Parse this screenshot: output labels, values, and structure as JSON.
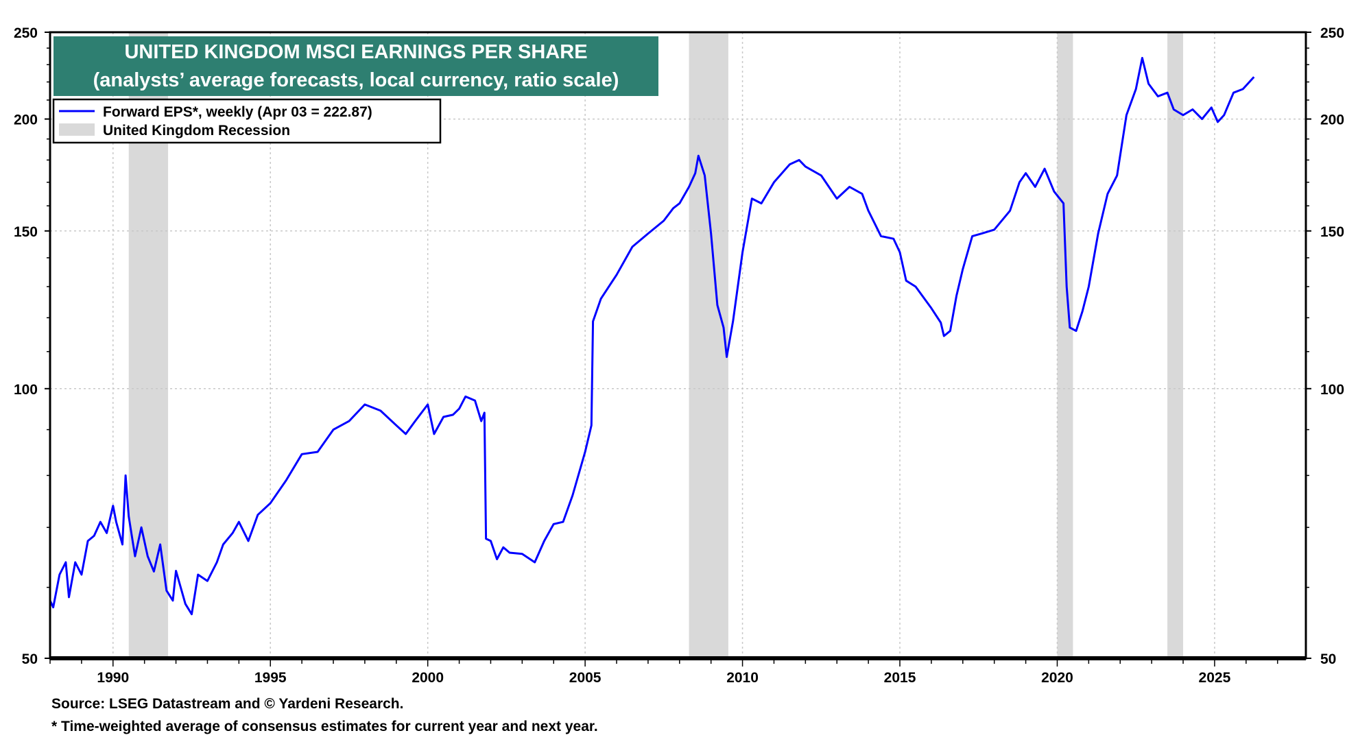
{
  "chart_data": {
    "type": "line",
    "title": "UNITED KINGDOM MSCI EARNINGS PER SHARE",
    "subtitle": "(analysts’ average forecasts, local currency, ratio scale)",
    "title_bg_color": "#2e7f71",
    "xlabel": "",
    "ylabel": "",
    "y_scale": "log",
    "ylim": [
      50,
      250
    ],
    "xlim": [
      1988.0,
      2027.9
    ],
    "y_ticks": [
      50,
      100,
      150,
      200,
      250
    ],
    "y_tick_labels": [
      "50",
      "100",
      "150",
      "200",
      "250"
    ],
    "x_ticks": [
      1990,
      1995,
      2000,
      2005,
      2010,
      2015,
      2020,
      2025
    ],
    "x_tick_labels": [
      "1990",
      "1995",
      "2000",
      "2005",
      "2010",
      "2015",
      "2020",
      "2025"
    ],
    "grid": true,
    "legend_position": "top-left",
    "legend": [
      {
        "label": "Forward EPS*, weekly (Apr 03 = 222.87)",
        "color": "#0000ff",
        "kind": "line"
      },
      {
        "label": "United Kingdom Recession",
        "color": "#d9d9d9",
        "kind": "band"
      }
    ],
    "recessions": [
      [
        1990.5,
        1991.75
      ],
      [
        2008.3,
        2009.55
      ],
      [
        2020.0,
        2020.5
      ],
      [
        2023.5,
        2024.0
      ]
    ],
    "series": [
      {
        "name": "Forward EPS*, weekly (Apr 03 = 222.87)",
        "color": "#0000ff",
        "x": [
          1988.0,
          1988.1,
          1988.3,
          1988.5,
          1988.6,
          1988.8,
          1989.0,
          1989.2,
          1989.4,
          1989.6,
          1989.8,
          1990.0,
          1990.1,
          1990.3,
          1990.4,
          1990.5,
          1990.7,
          1990.9,
          1991.1,
          1991.3,
          1991.5,
          1991.7,
          1991.9,
          1992.0,
          1992.3,
          1992.5,
          1992.7,
          1993.0,
          1993.3,
          1993.5,
          1993.8,
          1994.0,
          1994.3,
          1994.6,
          1995.0,
          1995.5,
          1996.0,
          1996.5,
          1997.0,
          1997.5,
          1998.0,
          1998.5,
          1999.0,
          1999.3,
          1999.6,
          2000.0,
          2000.2,
          2000.5,
          2000.8,
          2001.0,
          2001.2,
          2001.5,
          2001.7,
          2001.8,
          2001.85,
          2002.0,
          2002.2,
          2002.4,
          2002.6,
          2003.0,
          2003.4,
          2003.7,
          2004.0,
          2004.3,
          2004.6,
          2005.0,
          2005.2,
          2005.25,
          2005.5,
          2006.0,
          2006.5,
          2007.0,
          2007.5,
          2007.8,
          2008.0,
          2008.3,
          2008.5,
          2008.6,
          2008.8,
          2009.0,
          2009.2,
          2009.4,
          2009.5,
          2009.7,
          2010.0,
          2010.3,
          2010.6,
          2011.0,
          2011.5,
          2011.8,
          2012.0,
          2012.5,
          2013.0,
          2013.4,
          2013.8,
          2014.0,
          2014.4,
          2014.8,
          2015.0,
          2015.2,
          2015.5,
          2016.0,
          2016.3,
          2016.4,
          2016.6,
          2016.8,
          2017.0,
          2017.3,
          2017.6,
          2018.0,
          2018.5,
          2018.8,
          2019.0,
          2019.3,
          2019.6,
          2019.9,
          2020.2,
          2020.3,
          2020.4,
          2020.6,
          2020.8,
          2021.0,
          2021.3,
          2021.6,
          2021.9,
          2022.2,
          2022.5,
          2022.7,
          2022.9,
          2023.2,
          2023.5,
          2023.7,
          2024.0,
          2024.3,
          2024.6,
          2024.9,
          2025.1,
          2025.3,
          2025.6,
          2025.9,
          2026.25
        ],
        "y": [
          58,
          57,
          62,
          64,
          58.5,
          64,
          62,
          67.6,
          68.5,
          71,
          69,
          74,
          71,
          67,
          80,
          72,
          65,
          70,
          65,
          62.5,
          67,
          59.5,
          58,
          62.6,
          57.5,
          56,
          62,
          61,
          64,
          67,
          69,
          71,
          67.6,
          72.3,
          74.5,
          79,
          84.5,
          85,
          90,
          92,
          96,
          94.5,
          91,
          89,
          92,
          96,
          89,
          93,
          93.5,
          95,
          98,
          97,
          92,
          94,
          68,
          67.6,
          64.5,
          66.5,
          65.6,
          65.4,
          64,
          67.6,
          70.6,
          71,
          76,
          85,
          91,
          118.9,
          126,
          134,
          144,
          149,
          154,
          159,
          161,
          168,
          174,
          182,
          173,
          149,
          124,
          117,
          108.5,
          119,
          142,
          163,
          161,
          170,
          178,
          180,
          177,
          173,
          163,
          168,
          165,
          158,
          148,
          147,
          142,
          132,
          130,
          123,
          118.5,
          114.5,
          116,
          127,
          136,
          148,
          149,
          150.5,
          158,
          170,
          174,
          168,
          176,
          166,
          161,
          130,
          117,
          116,
          122,
          130,
          149,
          165,
          173,
          202,
          216,
          234,
          219,
          212,
          214,
          205,
          202,
          205,
          200,
          206,
          198.5,
          202,
          214,
          216,
          222.87
        ]
      }
    ]
  },
  "footer": {
    "source": "Source: LSEG Datastream and © Yardeni Research.",
    "note": "* Time-weighted average of consensus estimates for current year and next year."
  }
}
